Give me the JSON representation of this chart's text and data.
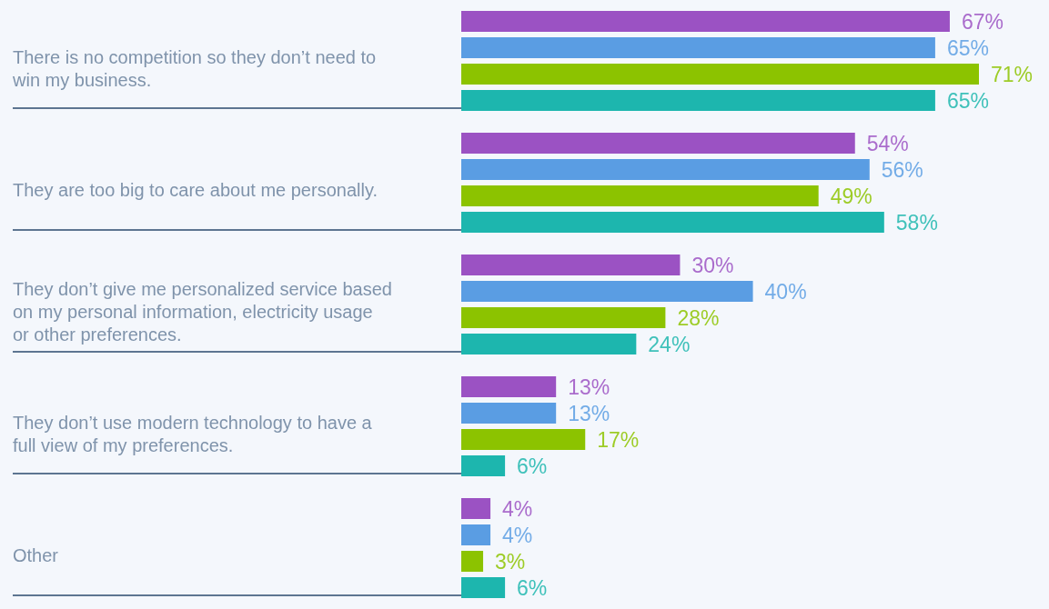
{
  "chart_data": {
    "type": "bar",
    "orientation": "horizontal",
    "categories": [
      "There is no competition so they don’t need to win my business.",
      "They are too big to care about me personally.",
      "They don’t give me personalized service based on my personal information, electricity usage or other preferences.",
      "They don’t use modern technology to have a full view of my preferences.",
      "Other"
    ],
    "series": [
      {
        "color": "#9b52c3",
        "values": [
          67,
          54,
          30,
          13,
          4
        ],
        "value_labels": [
          "67%",
          "54%",
          "30%",
          "13%",
          "4%"
        ]
      },
      {
        "color": "#5a9de3",
        "values": [
          65,
          56,
          40,
          13,
          4
        ],
        "value_labels": [
          "65%",
          "56%",
          "40%",
          "13%",
          "4%"
        ]
      },
      {
        "color": "#8cc300",
        "values": [
          71,
          49,
          28,
          17,
          3
        ],
        "value_labels": [
          "71%",
          "49%",
          "28%",
          "17%",
          "3%"
        ]
      },
      {
        "color": "#1db6ae",
        "values": [
          65,
          58,
          24,
          6,
          6
        ],
        "value_labels": [
          "65%",
          "58%",
          "24%",
          "6%",
          "6%"
        ]
      }
    ]
  }
}
